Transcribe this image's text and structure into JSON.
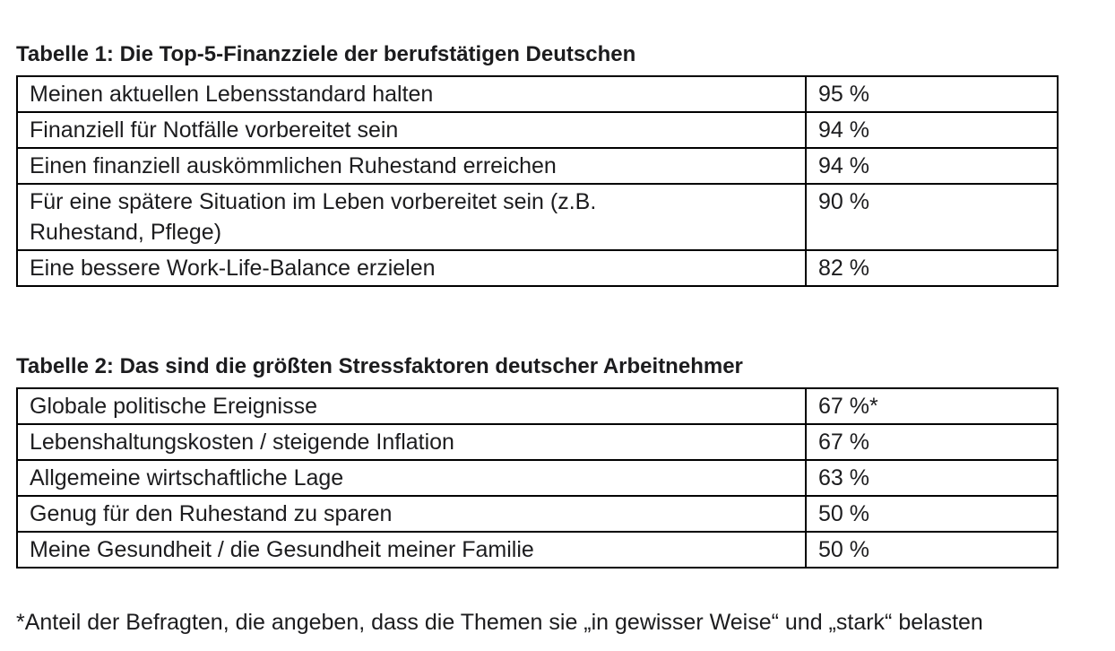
{
  "page": {
    "background_color": "#ffffff",
    "text_color": "#1c1c1e",
    "border_color": "#000000"
  },
  "table1": {
    "title": "Tabelle 1: Die Top-5-Finanzziele der berufstätigen Deutschen",
    "rows": [
      {
        "label": "Meinen aktuellen Lebensstandard halten",
        "value": "95 %"
      },
      {
        "label": "Finanziell für Notfälle vorbereitet sein",
        "value": "94 %"
      },
      {
        "label": "Einen finanziell auskömmlichen Ruhestand erreichen",
        "value": "94 %"
      },
      {
        "label": "Für eine spätere Situation im Leben vorbereitet sein (z.B.\nRuhestand, Pflege)",
        "value": "90 %"
      },
      {
        "label": "Eine bessere Work-Life-Balance erzielen",
        "value": "82 %"
      }
    ]
  },
  "table2": {
    "title": "Tabelle 2: Das sind die größten Stressfaktoren deutscher Arbeitnehmer",
    "rows": [
      {
        "label": "Globale politische Ereignisse",
        "value": "67 %*"
      },
      {
        "label": "Lebenshaltungskosten / steigende Inflation",
        "value": "67 %"
      },
      {
        "label": "Allgemeine wirtschaftliche Lage",
        "value": "63 %"
      },
      {
        "label": "Genug für den Ruhestand zu sparen",
        "value": "50 %"
      },
      {
        "label": "Meine Gesundheit / die Gesundheit meiner Familie",
        "value": "50 %"
      }
    ]
  },
  "footnote": "*Anteil der Befragten, die angeben, dass die Themen sie „in gewisser Weise“ und „stark“ belasten"
}
